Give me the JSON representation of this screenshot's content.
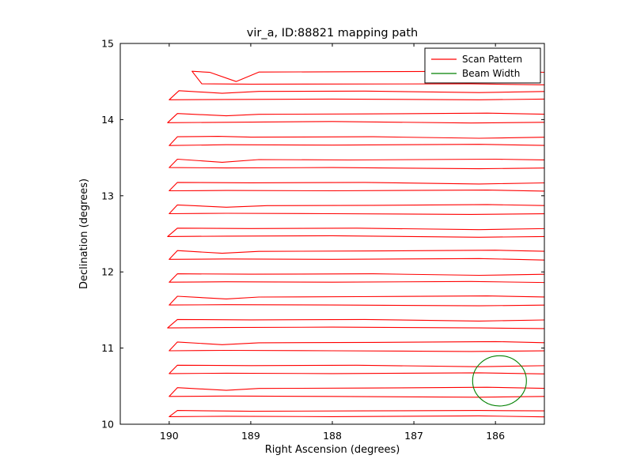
{
  "chart_data": {
    "type": "line",
    "title": "vir_a, ID:88821 mapping path",
    "xlabel": "Right Ascension (degrees)",
    "ylabel": "Declination (degrees)",
    "xlim": [
      190.6,
      185.4
    ],
    "ylim": [
      10,
      15
    ],
    "x_axis_inverted": true,
    "grid": false,
    "x_ticks": [
      190,
      189,
      188,
      187,
      186
    ],
    "y_ticks": [
      10,
      11,
      12,
      13,
      14,
      15
    ],
    "axis_color": "#000000",
    "background_color": "#ffffff",
    "legend": {
      "position": "upper right",
      "entries": [
        {
          "label": "Scan Pattern",
          "color": "#ff0000"
        },
        {
          "label": "Beam Width",
          "color": "#008000"
        }
      ]
    },
    "series": [
      {
        "name": "Scan Pattern",
        "color": "#ff0000",
        "kind": "serpentine-raster",
        "loops": [
          [
            [
              185.35,
              14.62
            ],
            [
              186.0,
              14.635
            ],
            [
              187.5,
              14.63
            ],
            [
              188.9,
              14.625
            ],
            [
              189.18,
              14.5
            ],
            [
              189.5,
              14.62
            ],
            [
              189.72,
              14.635
            ],
            [
              189.6,
              14.47
            ],
            [
              189.0,
              14.465
            ],
            [
              186.3,
              14.47
            ],
            [
              185.35,
              14.455
            ]
          ],
          [
            [
              185.35,
              14.37
            ],
            [
              186.2,
              14.355
            ],
            [
              187.6,
              14.375
            ],
            [
              188.9,
              14.37
            ],
            [
              189.35,
              14.345
            ],
            [
              189.88,
              14.38
            ],
            [
              190.0,
              14.26
            ],
            [
              189.3,
              14.265
            ],
            [
              188.0,
              14.27
            ],
            [
              186.2,
              14.26
            ],
            [
              185.35,
              14.27
            ]
          ],
          [
            [
              185.35,
              14.07
            ],
            [
              186.1,
              14.085
            ],
            [
              187.6,
              14.075
            ],
            [
              188.9,
              14.07
            ],
            [
              189.3,
              14.05
            ],
            [
              189.9,
              14.08
            ],
            [
              190.02,
              13.96
            ],
            [
              189.3,
              13.965
            ],
            [
              188.0,
              13.975
            ],
            [
              186.3,
              13.955
            ],
            [
              185.35,
              13.965
            ]
          ],
          [
            [
              185.35,
              13.77
            ],
            [
              186.2,
              13.755
            ],
            [
              187.5,
              13.775
            ],
            [
              189.0,
              13.77
            ],
            [
              189.4,
              13.78
            ],
            [
              189.9,
              13.775
            ],
            [
              190.0,
              13.66
            ],
            [
              189.3,
              13.67
            ],
            [
              188.0,
              13.665
            ],
            [
              186.2,
              13.675
            ],
            [
              185.35,
              13.66
            ]
          ],
          [
            [
              185.35,
              13.47
            ],
            [
              186.0,
              13.48
            ],
            [
              187.8,
              13.47
            ],
            [
              188.9,
              13.475
            ],
            [
              189.35,
              13.44
            ],
            [
              189.9,
              13.48
            ],
            [
              190.0,
              13.37
            ],
            [
              189.3,
              13.365
            ],
            [
              188.0,
              13.37
            ],
            [
              186.2,
              13.355
            ],
            [
              185.35,
              13.365
            ]
          ],
          [
            [
              185.35,
              13.17
            ],
            [
              186.2,
              13.155
            ],
            [
              187.6,
              13.175
            ],
            [
              189.0,
              13.17
            ],
            [
              189.9,
              13.175
            ],
            [
              190.0,
              13.065
            ],
            [
              189.3,
              13.07
            ],
            [
              188.0,
              13.065
            ],
            [
              186.1,
              13.075
            ],
            [
              185.35,
              13.06
            ]
          ],
          [
            [
              185.35,
              12.87
            ],
            [
              186.1,
              12.885
            ],
            [
              187.5,
              12.875
            ],
            [
              188.8,
              12.87
            ],
            [
              189.3,
              12.85
            ],
            [
              189.9,
              12.88
            ],
            [
              190.0,
              12.765
            ],
            [
              189.3,
              12.77
            ],
            [
              188.0,
              12.765
            ],
            [
              186.3,
              12.755
            ],
            [
              185.35,
              12.765
            ]
          ],
          [
            [
              185.35,
              12.57
            ],
            [
              186.2,
              12.555
            ],
            [
              187.7,
              12.575
            ],
            [
              189.0,
              12.57
            ],
            [
              189.9,
              12.575
            ],
            [
              190.02,
              12.465
            ],
            [
              189.3,
              12.47
            ],
            [
              188.0,
              12.475
            ],
            [
              186.2,
              12.455
            ],
            [
              185.35,
              12.465
            ]
          ],
          [
            [
              185.35,
              12.27
            ],
            [
              186.0,
              12.285
            ],
            [
              187.6,
              12.275
            ],
            [
              188.9,
              12.27
            ],
            [
              189.35,
              12.245
            ],
            [
              189.9,
              12.28
            ],
            [
              190.0,
              12.165
            ],
            [
              189.3,
              12.17
            ],
            [
              188.0,
              12.165
            ],
            [
              186.2,
              12.175
            ],
            [
              185.35,
              12.155
            ]
          ],
          [
            [
              185.35,
              11.97
            ],
            [
              186.2,
              11.955
            ],
            [
              187.5,
              11.975
            ],
            [
              189.0,
              11.97
            ],
            [
              189.9,
              11.975
            ],
            [
              190.0,
              11.865
            ],
            [
              189.3,
              11.87
            ],
            [
              188.0,
              11.865
            ],
            [
              186.3,
              11.875
            ],
            [
              185.35,
              11.86
            ]
          ],
          [
            [
              185.35,
              11.67
            ],
            [
              186.1,
              11.685
            ],
            [
              187.7,
              11.675
            ],
            [
              188.9,
              11.67
            ],
            [
              189.3,
              11.645
            ],
            [
              189.9,
              11.68
            ],
            [
              190.0,
              11.565
            ],
            [
              189.3,
              11.57
            ],
            [
              188.0,
              11.565
            ],
            [
              186.2,
              11.555
            ],
            [
              185.35,
              11.565
            ]
          ],
          [
            [
              185.35,
              11.37
            ],
            [
              186.2,
              11.355
            ],
            [
              187.6,
              11.375
            ],
            [
              189.0,
              11.37
            ],
            [
              189.9,
              11.375
            ],
            [
              190.02,
              11.265
            ],
            [
              189.3,
              11.27
            ],
            [
              188.0,
              11.275
            ],
            [
              186.2,
              11.265
            ],
            [
              185.35,
              11.255
            ]
          ],
          [
            [
              185.35,
              11.07
            ],
            [
              186.0,
              11.085
            ],
            [
              187.5,
              11.075
            ],
            [
              188.9,
              11.07
            ],
            [
              189.35,
              11.045
            ],
            [
              189.9,
              11.08
            ],
            [
              190.0,
              10.965
            ],
            [
              189.3,
              10.97
            ],
            [
              188.0,
              10.965
            ],
            [
              186.3,
              10.955
            ],
            [
              185.35,
              10.965
            ]
          ],
          [
            [
              185.35,
              10.77
            ],
            [
              186.2,
              10.755
            ],
            [
              187.7,
              10.775
            ],
            [
              189.0,
              10.77
            ],
            [
              189.9,
              10.775
            ],
            [
              190.0,
              10.665
            ],
            [
              189.3,
              10.67
            ],
            [
              188.0,
              10.665
            ],
            [
              186.2,
              10.675
            ],
            [
              185.35,
              10.66
            ]
          ],
          [
            [
              185.35,
              10.47
            ],
            [
              186.1,
              10.485
            ],
            [
              187.6,
              10.475
            ],
            [
              188.9,
              10.47
            ],
            [
              189.3,
              10.445
            ],
            [
              189.9,
              10.48
            ],
            [
              190.0,
              10.365
            ],
            [
              189.3,
              10.37
            ],
            [
              188.0,
              10.365
            ],
            [
              186.2,
              10.355
            ],
            [
              185.35,
              10.365
            ]
          ],
          [
            [
              185.35,
              10.175
            ],
            [
              186.2,
              10.18
            ],
            [
              187.6,
              10.175
            ],
            [
              189.0,
              10.17
            ],
            [
              189.9,
              10.18
            ],
            [
              190.0,
              10.1
            ],
            [
              189.3,
              10.105
            ],
            [
              188.0,
              10.1
            ],
            [
              186.2,
              10.11
            ],
            [
              185.35,
              10.095
            ]
          ]
        ]
      },
      {
        "name": "Beam Width",
        "color": "#008000",
        "kind": "circle",
        "center": [
          185.95,
          10.57
        ],
        "radius_deg": 0.33
      }
    ]
  }
}
